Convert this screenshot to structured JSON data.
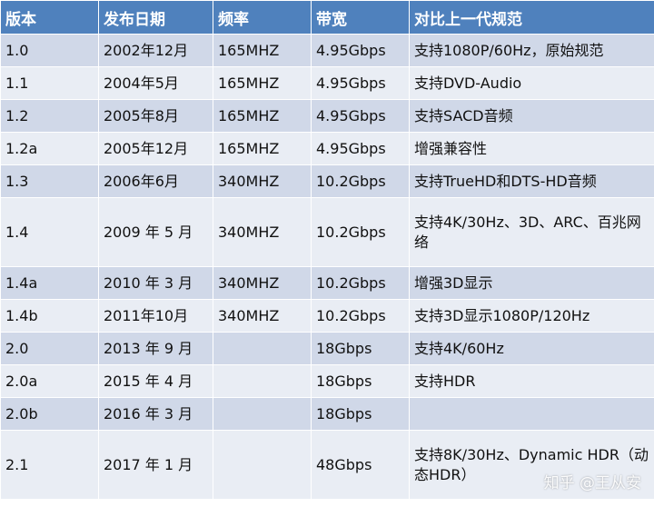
{
  "headers": [
    "版本",
    "发布日期",
    "频率",
    "带宽",
    "对比上一代规范"
  ],
  "rows": [
    [
      "1.0",
      "2002年12月",
      "165MHZ",
      "4.95Gbps",
      "支持1080P/60Hz，原始规范"
    ],
    [
      "1.1",
      "2004年5月",
      "165MHZ",
      "4.95Gbps",
      "支持DVD-Audio"
    ],
    [
      "1.2",
      "2005年8月",
      "165MHZ",
      "4.95Gbps",
      "支持SACD音频"
    ],
    [
      "1.2a",
      "2005年12月",
      "165MHZ",
      "4.95Gbps",
      "增强兼容性"
    ],
    [
      "1.3",
      "2006年6月",
      "340MHZ",
      "10.2Gbps",
      "支持TrueHD和DTS-HD音频"
    ],
    [
      "1.4",
      "2009 年 5 月",
      "340MHZ",
      "10.2Gbps",
      "支持4K/30Hz、3D、ARC、百兆网络"
    ],
    [
      "1.4a",
      "2010 年 3 月",
      "340MHZ",
      "10.2Gbps",
      "增强3D显示"
    ],
    [
      "1.4b",
      "2011年10月",
      "340MHZ",
      "10.2Gbps",
      "支持3D显示1080P/120Hz"
    ],
    [
      "2.0",
      "2013 年 9 月",
      "",
      "18Gbps",
      "支持4K/60Hz"
    ],
    [
      "2.0a",
      "2015 年 4 月",
      "",
      "18Gbps",
      "支持HDR"
    ],
    [
      "2.0b",
      "2016 年 3 月",
      "",
      "18Gbps",
      ""
    ],
    [
      "2.1",
      "2017 年 1 月",
      "",
      "48Gbps",
      "支持8K/30Hz、Dynamic HDR（动态HDR）"
    ]
  ],
  "watermark": "知乎 @王从安"
}
